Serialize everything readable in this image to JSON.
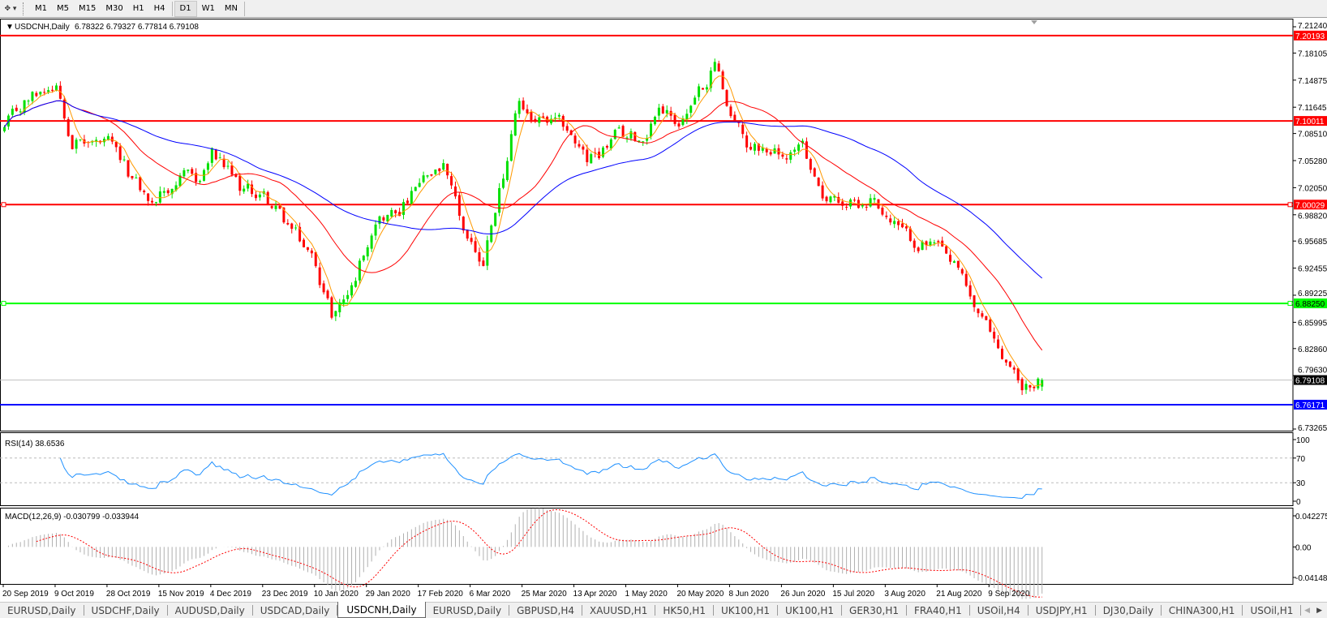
{
  "toolbar": {
    "tool_icon": "crosshair-pointer-icon",
    "timeframes": [
      "M1",
      "M5",
      "M15",
      "M30",
      "H1",
      "H4",
      "D1",
      "W1",
      "MN"
    ],
    "active_timeframe": "D1"
  },
  "chart_header": {
    "symbol": "USDCNH,Daily",
    "ohlc": "6.78322 6.79327 6.77814 6.79108"
  },
  "colors": {
    "bull_candle": "#00e000",
    "bear_candle": "#ff0000",
    "ma_fast": "#ff9900",
    "ma_mid": "#ff0000",
    "ma_slow": "#0000ff",
    "rsi_line": "#1e90ff",
    "macd_hist": "#b0b0b0",
    "macd_signal": "#ff0000",
    "bid_line": "#c0c0c0"
  },
  "chart_data": {
    "type": "candlestick",
    "symbol": "USDCNH",
    "timeframe": "Daily",
    "last_bar": {
      "open": 6.78322,
      "high": 6.79327,
      "low": 6.77814,
      "close": 6.79108
    },
    "ylim": [
      6.73265,
      7.2124
    ],
    "price_ticks": [
      "7.21240",
      "7.18105",
      "7.14875",
      "7.11645",
      "7.08510",
      "7.05280",
      "7.02050",
      "6.98820",
      "6.95685",
      "6.92455",
      "6.89225",
      "6.85995",
      "6.82860",
      "6.79630",
      "6.73265"
    ],
    "date_ticks": [
      "20 Sep 2019",
      "9 Oct 2019",
      "28 Oct 2019",
      "15 Nov 2019",
      "4 Dec 2019",
      "23 Dec 2019",
      "10 Jan 2020",
      "29 Jan 2020",
      "17 Feb 2020",
      "6 Mar 2020",
      "25 Mar 2020",
      "13 Apr 2020",
      "1 May 2020",
      "20 May 2020",
      "8 Jun 2020",
      "26 Jun 2020",
      "15 Jul 2020",
      "3 Aug 2020",
      "21 Aug 2020",
      "9 Sep 2020"
    ],
    "approx_close_path": [
      [
        "2019-09-20",
        7.09
      ],
      [
        "2019-09-27",
        7.12
      ],
      [
        "2019-10-04",
        7.14
      ],
      [
        "2019-10-09",
        7.15
      ],
      [
        "2019-10-15",
        7.08
      ],
      [
        "2019-10-28",
        7.07
      ],
      [
        "2019-11-05",
        7.03
      ],
      [
        "2019-11-12",
        7.0
      ],
      [
        "2019-11-20",
        7.03
      ],
      [
        "2019-11-28",
        7.03
      ],
      [
        "2019-12-03",
        7.06
      ],
      [
        "2019-12-12",
        7.02
      ],
      [
        "2019-12-20",
        7.01
      ],
      [
        "2019-12-31",
        6.97
      ],
      [
        "2020-01-08",
        6.93
      ],
      [
        "2020-01-14",
        6.87
      ],
      [
        "2020-01-21",
        6.9
      ],
      [
        "2020-01-29",
        6.99
      ],
      [
        "2020-02-05",
        6.99
      ],
      [
        "2020-02-17",
        7.03
      ],
      [
        "2020-02-21",
        7.04
      ],
      [
        "2020-02-28",
        6.97
      ],
      [
        "2020-03-06",
        6.93
      ],
      [
        "2020-03-10",
        6.98
      ],
      [
        "2020-03-19",
        7.12
      ],
      [
        "2020-03-25",
        7.1
      ],
      [
        "2020-04-06",
        7.09
      ],
      [
        "2020-04-13",
        7.05
      ],
      [
        "2020-04-22",
        7.08
      ],
      [
        "2020-05-01",
        7.08
      ],
      [
        "2020-05-07",
        7.12
      ],
      [
        "2020-05-14",
        7.1
      ],
      [
        "2020-05-20",
        7.12
      ],
      [
        "2020-05-27",
        7.17
      ],
      [
        "2020-06-02",
        7.11
      ],
      [
        "2020-06-08",
        7.07
      ],
      [
        "2020-06-15",
        7.07
      ],
      [
        "2020-06-26",
        7.07
      ],
      [
        "2020-07-06",
        7.01
      ],
      [
        "2020-07-15",
        7.0
      ],
      [
        "2020-07-22",
        7.01
      ],
      [
        "2020-07-28",
        6.98
      ],
      [
        "2020-08-03",
        6.96
      ],
      [
        "2020-08-12",
        6.95
      ],
      [
        "2020-08-21",
        6.91
      ],
      [
        "2020-08-28",
        6.86
      ],
      [
        "2020-09-03",
        6.83
      ],
      [
        "2020-09-10",
        6.79
      ],
      [
        "2020-09-16",
        6.78
      ],
      [
        "2020-09-18",
        6.79108
      ]
    ],
    "horizontal_lines": [
      {
        "price": 7.20193,
        "label": "7.20193",
        "color": "#ff0000"
      },
      {
        "price": 7.10011,
        "label": "7.10011",
        "color": "#ff0000"
      },
      {
        "price": 7.00029,
        "label": "7.00029",
        "color": "#ff0000"
      },
      {
        "price": 6.8825,
        "label": "6.88250",
        "color": "#00ff00"
      },
      {
        "price": 6.76171,
        "label": "6.76171",
        "color": "#0000ff"
      }
    ],
    "bid": {
      "price": 6.79108,
      "label": "6.79108"
    },
    "moving_averages": [
      5,
      20,
      50
    ],
    "rsi": {
      "label": "RSI(14) 38.6536",
      "levels": [
        70,
        30
      ],
      "ticks": [
        "100",
        "70",
        "30",
        "0"
      ],
      "ylim": [
        0,
        100
      ]
    },
    "macd": {
      "label": "MACD(12,26,9) -0.030799 -0.033944",
      "ticks": [
        "0.042275",
        "0.00",
        "-0.04148"
      ],
      "ylim": [
        -0.04148,
        0.042275
      ]
    }
  },
  "tabs": {
    "items": [
      "EURUSD,Daily",
      "USDCHF,Daily",
      "AUDUSD,Daily",
      "USDCAD,Daily",
      "USDCNH,Daily",
      "EURUSD,Daily",
      "GBPUSD,H4",
      "XAUUSD,H1",
      "HK50,H1",
      "UK100,H1",
      "UK100,H1",
      "GER30,H1",
      "FRA40,H1",
      "USOil,H4",
      "USDJPY,H1",
      "DJ30,Daily",
      "CHINA300,H1",
      "USOil,H1"
    ],
    "active": "USDCNH,Daily",
    "scroll_left_icon": "triangle-left-icon",
    "scroll_right_icon": "triangle-right-icon"
  }
}
